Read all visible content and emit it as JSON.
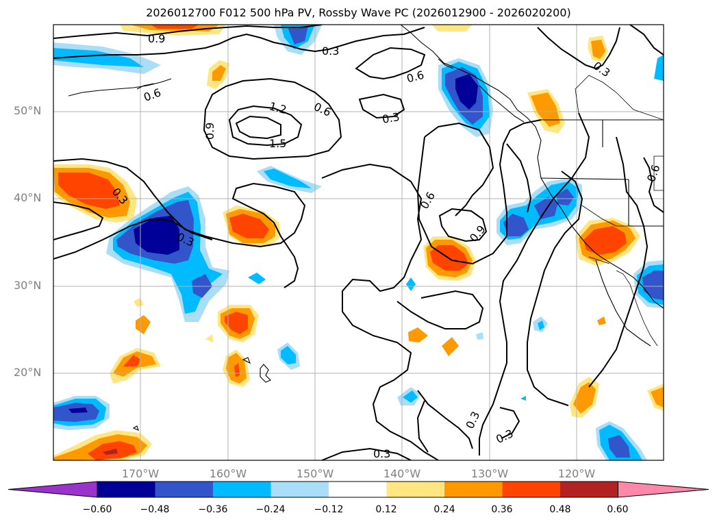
{
  "title": "2026012700 F012 500 hPa PV, Rossby Wave PC (2026012900 - 2026020200)",
  "lat_labels": [
    "50°N",
    "40°N",
    "30°N",
    "20°N"
  ],
  "lon_labels": [
    "170°W",
    "160°W",
    "150°W",
    "140°W",
    "130°W",
    "120°W"
  ],
  "contour_labels": [
    "0.9",
    "0.6",
    "0.3",
    "0.6",
    "0.6",
    "0.3",
    "1.2",
    "1.5",
    "0.9",
    "0.3",
    "0.3",
    "0.6",
    "0.9",
    "0.3",
    "0.3",
    "0.3",
    "0.6",
    "0.3"
  ],
  "colorbar": {
    "ticks": [
      "−0.60",
      "−0.48",
      "−0.36",
      "−0.24",
      "−0.12",
      "0.12",
      "0.24",
      "0.36",
      "0.48",
      "0.60"
    ],
    "colors": [
      "#9933cc",
      "#000099",
      "#3355cc",
      "#00bbff",
      "#aaddf8",
      "#ffffff",
      "#ffe680",
      "#ff9900",
      "#ff4400",
      "#b22222",
      "#ff88aa"
    ]
  },
  "palette": {
    "ocean": "#ffffff",
    "land_line": "#000000",
    "grid": "#b0b0b0"
  }
}
